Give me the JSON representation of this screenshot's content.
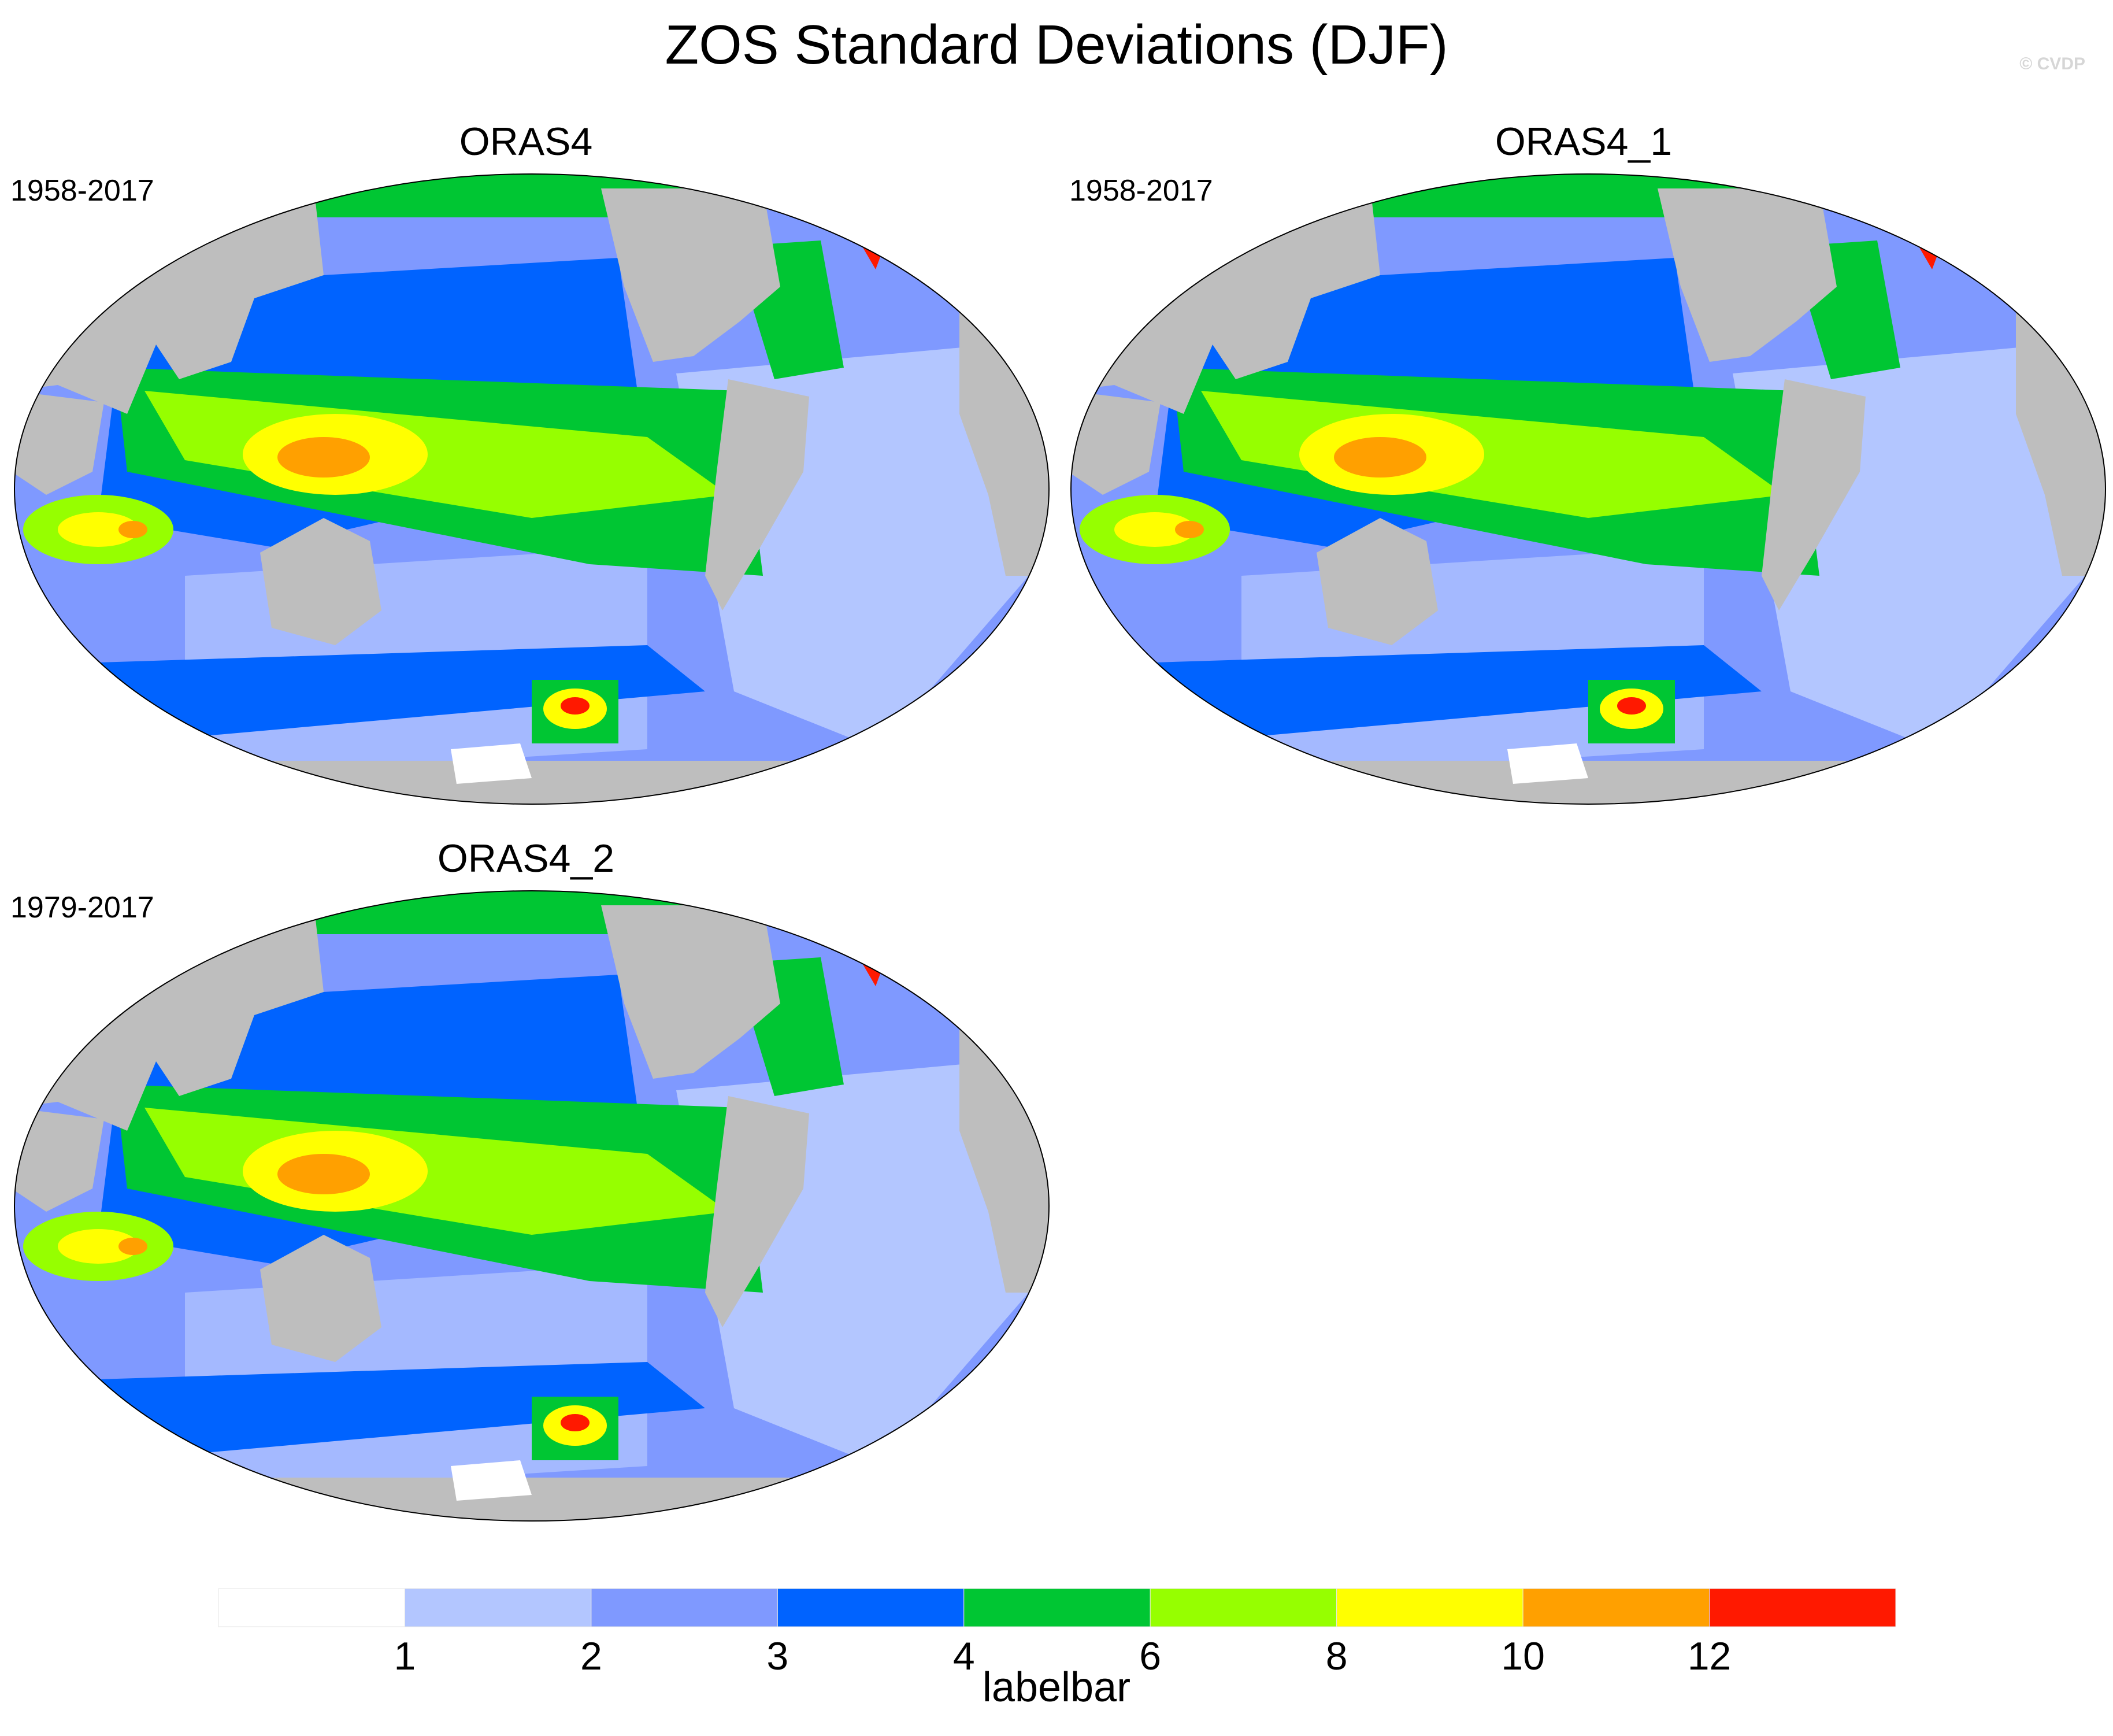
{
  "title": "ZOS Standard Deviations (DJF)",
  "watermark": "© CVDP",
  "panels": [
    {
      "name": "ORAS4",
      "period": "1958-2017"
    },
    {
      "name": "ORAS4_1",
      "period": "1958-2017"
    },
    {
      "name": "ORAS4_2",
      "period": "1979-2017"
    }
  ],
  "labelbar": {
    "label": "labelbar",
    "ticks": [
      "1",
      "2",
      "3",
      "4",
      "6",
      "8",
      "10",
      "12"
    ],
    "colors": [
      "#ffffff",
      "#b3c6ff",
      "#7f99ff",
      "#0063ff",
      "#00c633",
      "#96ff00",
      "#ffff00",
      "#ffa000",
      "#ff1900"
    ]
  },
  "colors": {
    "land": "#bebebe",
    "ocean_low": "#b3c6ff",
    "ocean_mid": "#7f99ff",
    "ocean_high": "#0063ff",
    "green": "#00c633",
    "lime": "#96ff00",
    "yellow": "#ffff00",
    "orange": "#ffa000",
    "red": "#ff1900"
  }
}
